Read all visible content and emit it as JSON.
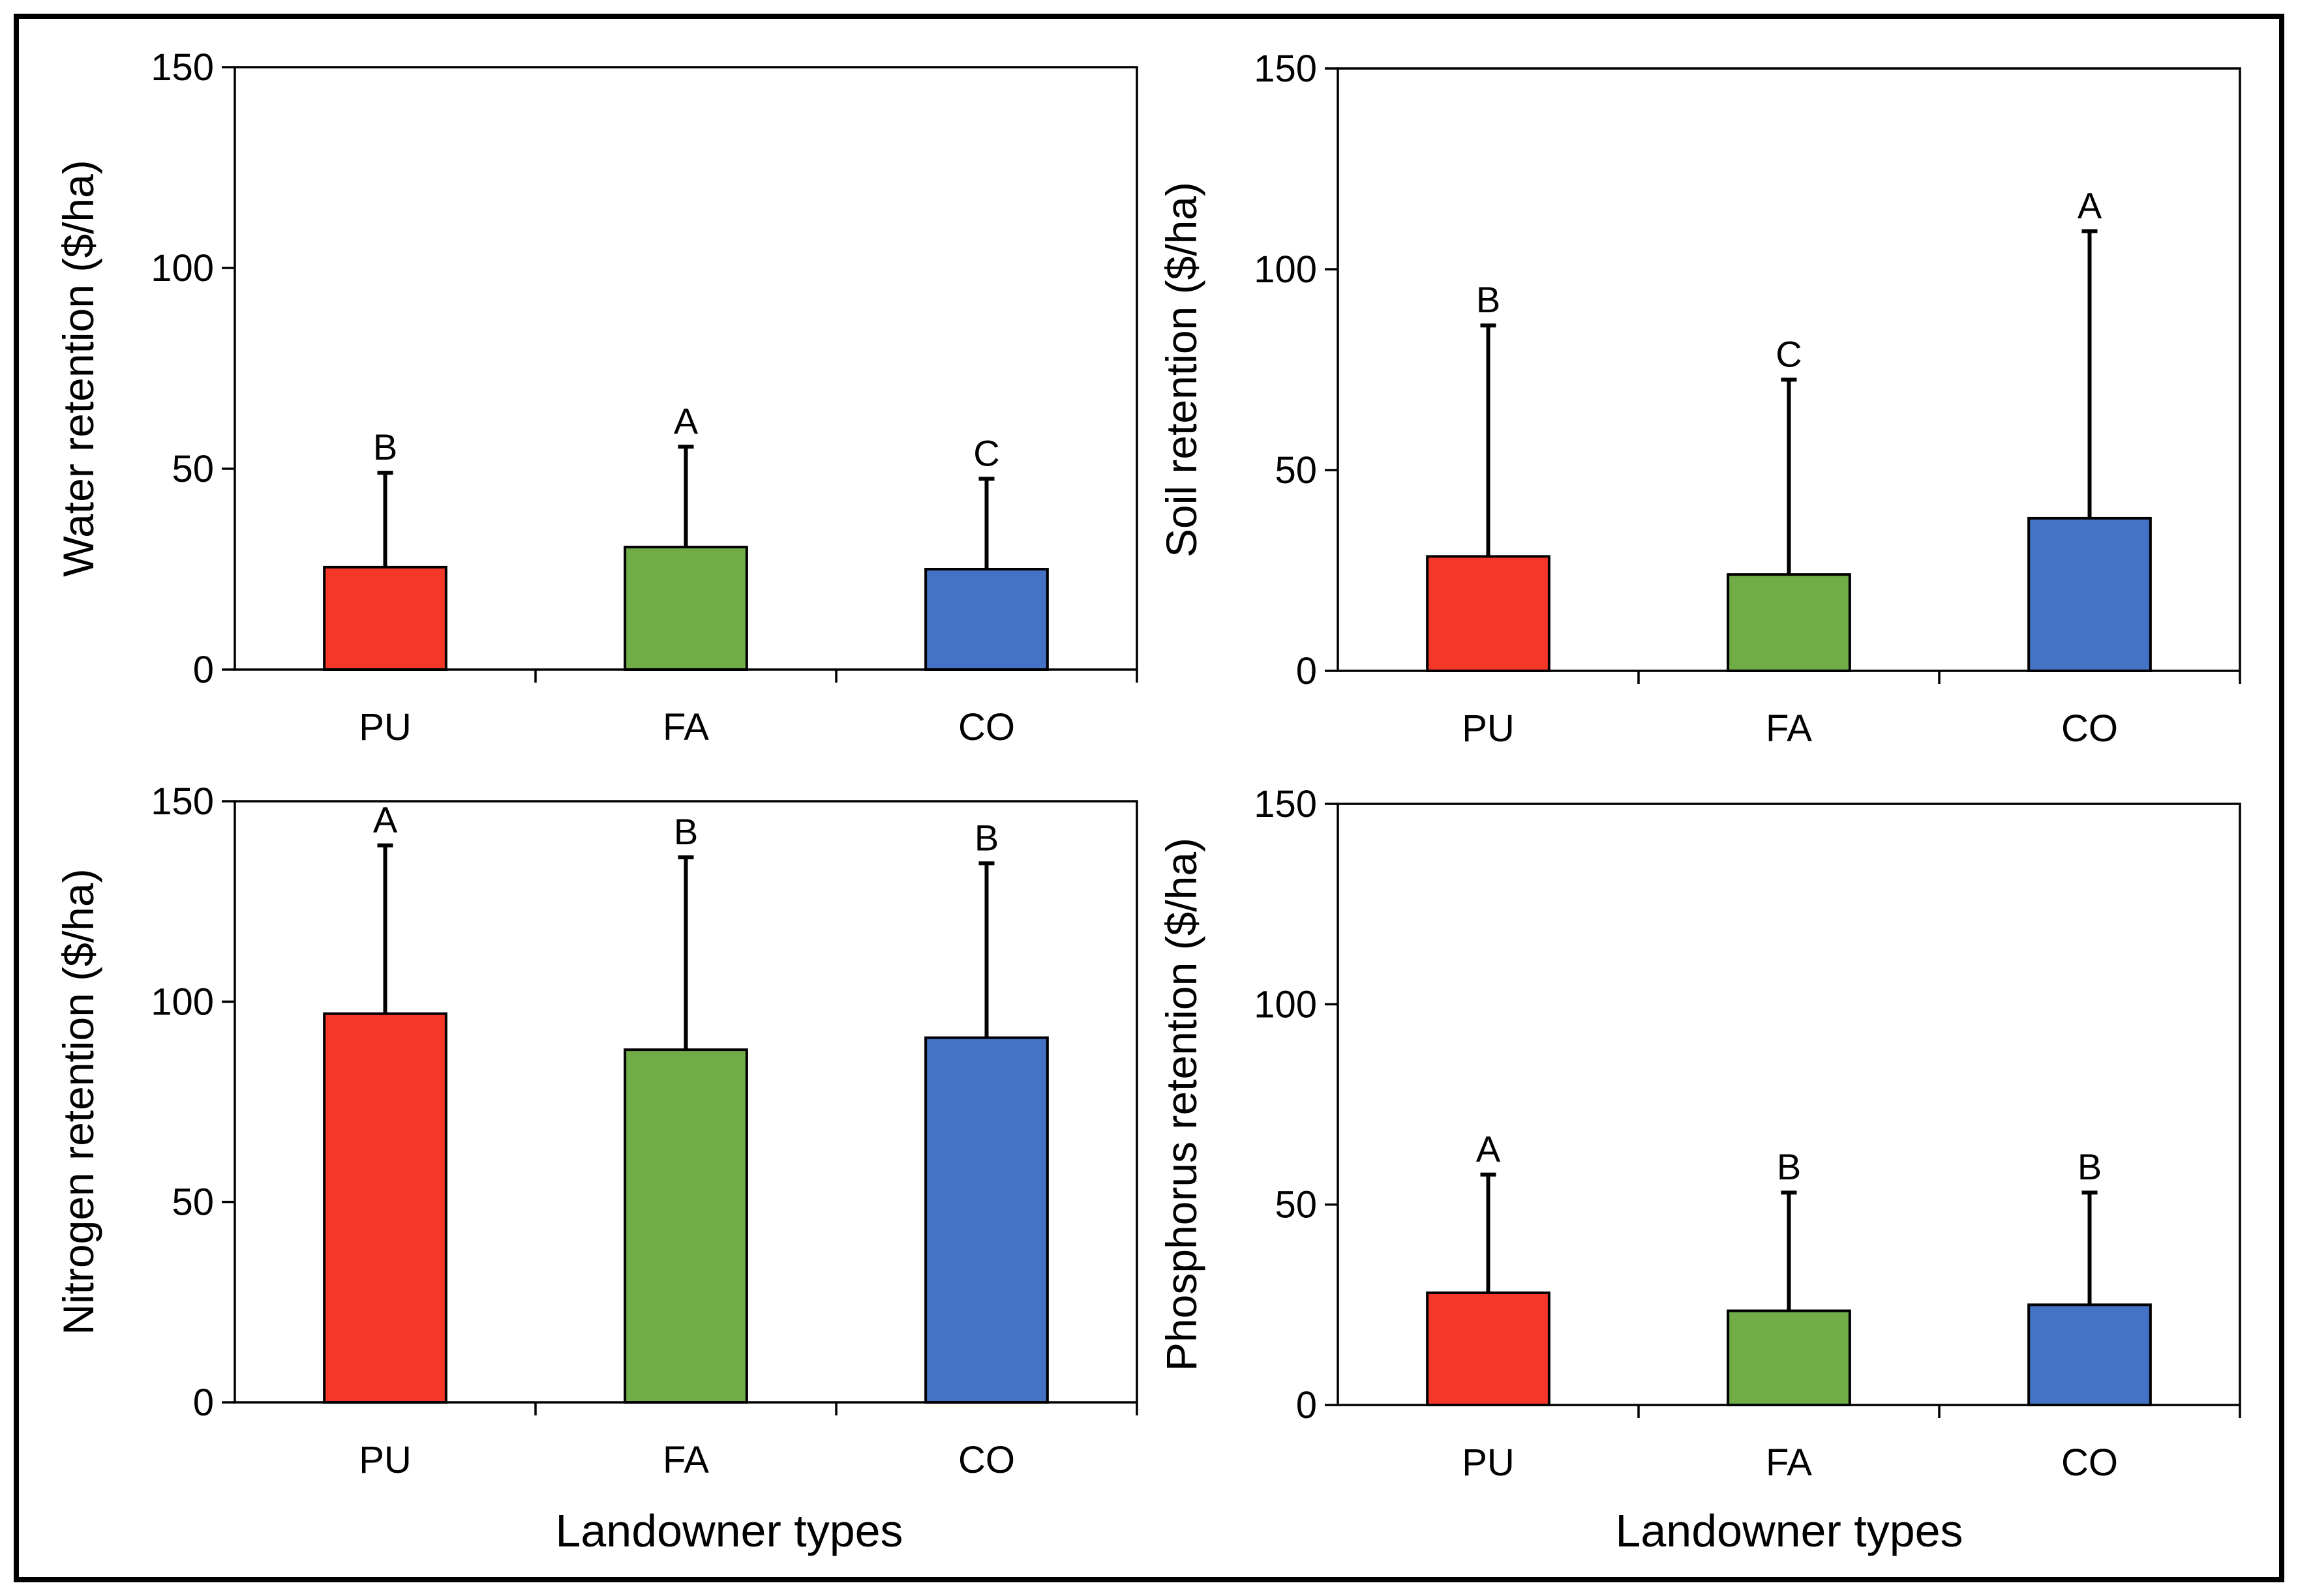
{
  "chart_data": [
    {
      "type": "bar",
      "title": "",
      "ylabel": "Water retention ($/ha)",
      "xlabel": "",
      "categories": [
        "PU",
        "FA",
        "CO"
      ],
      "values": [
        25.5,
        30.5,
        25
      ],
      "error_upper": [
        49,
        55.5,
        47.5
      ],
      "significance": [
        "B",
        "A",
        "C"
      ],
      "ylim": [
        0,
        150
      ],
      "yticks": [
        0,
        50,
        100,
        150
      ],
      "colors": [
        "#f5372a",
        "#70ad47",
        "#4472c4"
      ]
    },
    {
      "type": "bar",
      "title": "",
      "ylabel": "Soil retention ($/ha)",
      "xlabel": "",
      "categories": [
        "PU",
        "FA",
        "CO"
      ],
      "values": [
        28.5,
        24,
        38
      ],
      "error_upper": [
        86,
        72.5,
        109.5
      ],
      "significance": [
        "B",
        "C",
        "A"
      ],
      "ylim": [
        0,
        150
      ],
      "yticks": [
        0,
        50,
        100,
        150
      ],
      "colors": [
        "#f5372a",
        "#70ad47",
        "#4472c4"
      ]
    },
    {
      "type": "bar",
      "title": "",
      "ylabel": "Nitrogen retention ($/ha)",
      "xlabel": "Landowner types",
      "categories": [
        "PU",
        "FA",
        "CO"
      ],
      "values": [
        97,
        88,
        91
      ],
      "error_upper": [
        139,
        136,
        134.5
      ],
      "significance": [
        "A",
        "B",
        "B"
      ],
      "ylim": [
        0,
        150
      ],
      "yticks": [
        0,
        50,
        100,
        150
      ],
      "colors": [
        "#f5372a",
        "#70ad47",
        "#4472c4"
      ]
    },
    {
      "type": "bar",
      "title": "",
      "ylabel": "Phosphorus retention ($/ha)",
      "xlabel": "Landowner types",
      "categories": [
        "PU",
        "FA",
        "CO"
      ],
      "values": [
        28,
        23.5,
        25
      ],
      "error_upper": [
        57.5,
        53,
        53
      ],
      "significance": [
        "A",
        "B",
        "B"
      ],
      "ylim": [
        0,
        150
      ],
      "yticks": [
        0,
        50,
        100,
        150
      ],
      "colors": [
        "#f5372a",
        "#70ad47",
        "#4472c4"
      ]
    }
  ]
}
